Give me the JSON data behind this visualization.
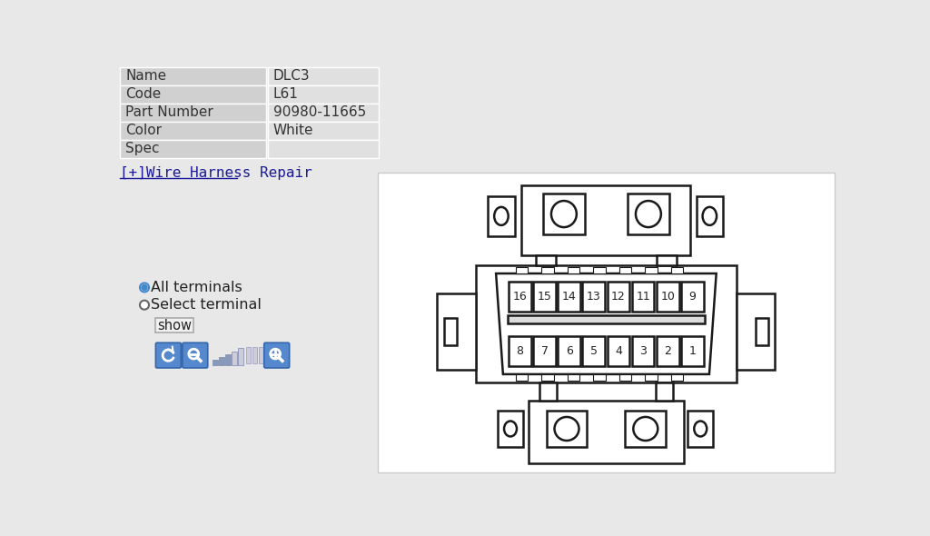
{
  "background_color": "#e8e8e8",
  "right_panel_color": "#ffffff",
  "table_rows": [
    {
      "label": "Name",
      "value": "DLC3"
    },
    {
      "label": "Code",
      "value": "L61"
    },
    {
      "label": "Part Number",
      "value": "90980-11665"
    },
    {
      "label": "Color",
      "value": "White"
    },
    {
      "label": "Spec",
      "value": ""
    }
  ],
  "table_label_bg": "#d0d0d0",
  "table_value_bg": "#e0e0e0",
  "table_border_color": "#ffffff",
  "link_text": "[+]Wire Harness Repair",
  "radio1_text": "All terminals",
  "radio2_text": "Select terminal",
  "show_btn_text": "show",
  "connector_line_color": "#1a1a1a",
  "connector_fill": "#ffffff",
  "top_row_pins": [
    "16",
    "15",
    "14",
    "13",
    "12",
    "11",
    "10",
    "9"
  ],
  "bottom_row_pins": [
    "8",
    "7",
    "6",
    "5",
    "4",
    "3",
    "2",
    "1"
  ]
}
